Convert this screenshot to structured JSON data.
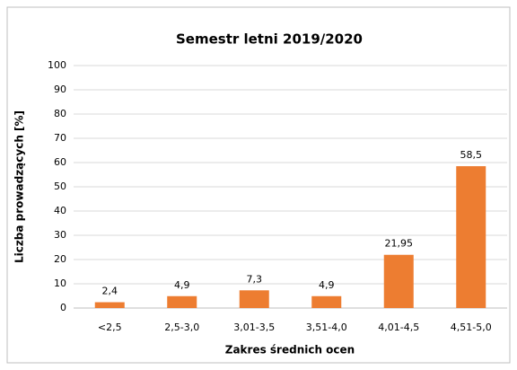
{
  "chart_data": {
    "type": "bar",
    "title": "Semestr letni 2019/2020",
    "x_label": "Zakres średnich ocen",
    "y_label": "Liczba prowadzących [%]",
    "categories": [
      "<2,5",
      "2,5-3,0",
      "3,01-3,5",
      "3,51-4,0",
      "4,01-4,5",
      "4,51-5,0"
    ],
    "values": [
      2.4,
      4.9,
      7.3,
      4.9,
      21.95,
      58.5
    ],
    "value_labels": [
      "2,4",
      "4,9",
      "7,3",
      "4,9",
      "21,95",
      "58,5"
    ],
    "color": "#ed7d31",
    "ylim": [
      0,
      100
    ],
    "yticks": [
      0,
      10,
      20,
      30,
      40,
      50,
      60,
      70,
      80,
      90,
      100
    ],
    "grid": true
  }
}
